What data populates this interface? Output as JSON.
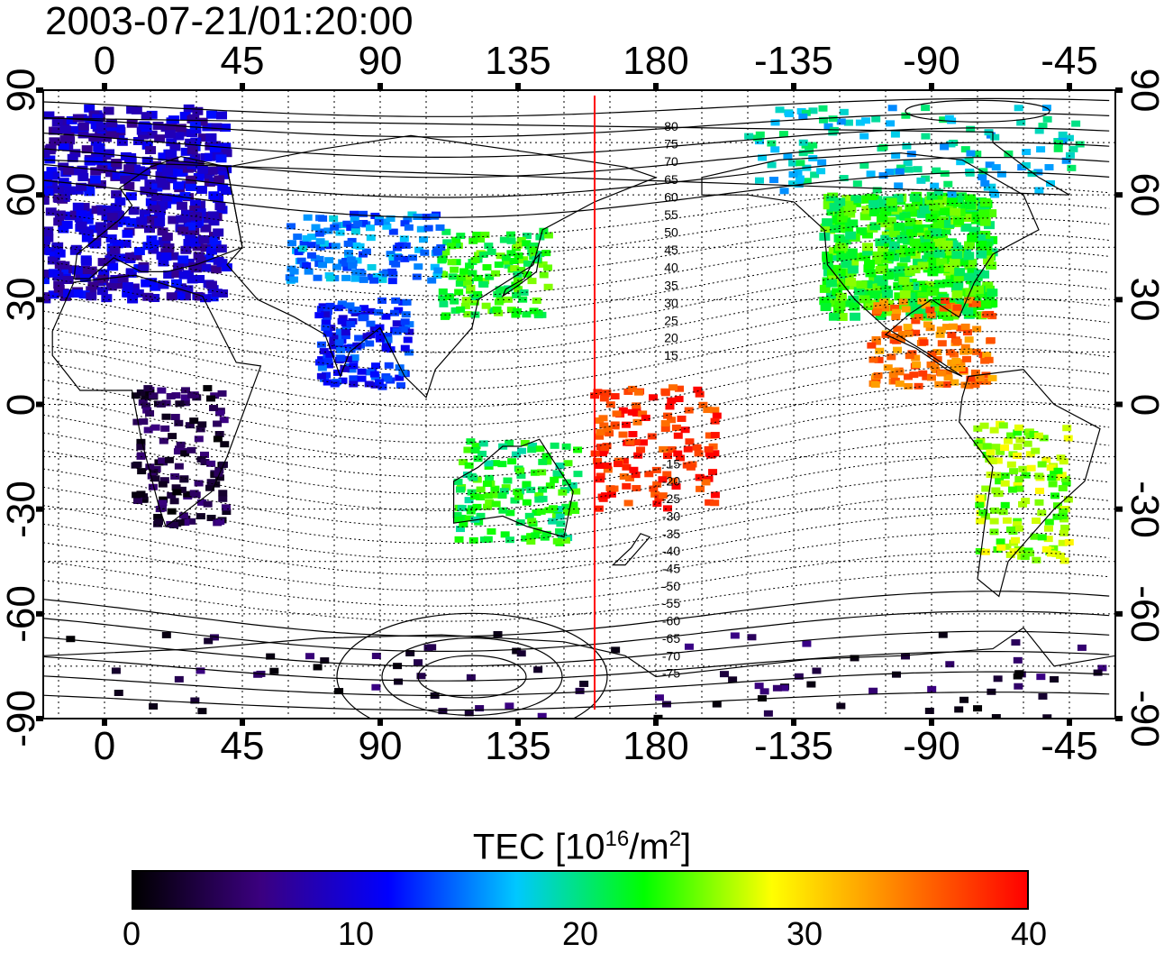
{
  "title": "2003-07-21/01:20:00",
  "x_axis": {
    "top_ticks": [
      "0",
      "45",
      "90",
      "135",
      "180",
      "-135",
      "-90",
      "-45"
    ],
    "bottom_ticks": [
      "0",
      "45",
      "90",
      "135",
      "180",
      "-135",
      "-90",
      "-45"
    ],
    "range_deg": [
      -20,
      330
    ]
  },
  "y_axis": {
    "left_ticks": [
      "90",
      "60",
      "30",
      "0",
      "-30",
      "-60",
      "-90"
    ],
    "right_ticks": [
      "90",
      "60",
      "30",
      "0",
      "-30",
      "-60",
      "-90"
    ],
    "range_deg": [
      -90,
      90
    ]
  },
  "contour_labels_north": [
    "80",
    "75",
    "70",
    "65",
    "60",
    "55",
    "50",
    "45",
    "40",
    "35",
    "30",
    "25",
    "20",
    "15"
  ],
  "contour_labels_south": [
    "-15",
    "-20",
    "-25",
    "-30",
    "-35",
    "-40",
    "-45",
    "-50",
    "-55",
    "-60",
    "-65",
    "-70",
    "-75"
  ],
  "marker_line_lon": 160,
  "colorbar": {
    "title_prefix": "TEC  [10",
    "title_exp1": "16",
    "title_mid": "/m",
    "title_exp2": "2",
    "title_suffix": "]",
    "ticks": [
      "0",
      "10",
      "20",
      "30",
      "40"
    ],
    "range": [
      0,
      40
    ],
    "colors": [
      "#000000",
      "#3b0080",
      "#0000ff",
      "#00c8ff",
      "#00ff00",
      "#ffff00",
      "#ff8000",
      "#ff0000"
    ]
  },
  "colors": {
    "marker_line": "#ff0000",
    "grid": "#000000",
    "coast": "#000000"
  },
  "tec_regions": [
    {
      "name": "europe",
      "lon": [
        -20,
        40
      ],
      "lat": [
        30,
        85
      ],
      "value": 9
    },
    {
      "name": "north-america",
      "lon": [
        -125,
        -70
      ],
      "lat": [
        25,
        60
      ],
      "value": 23
    },
    {
      "name": "canada-arctic",
      "lon": [
        -150,
        -40
      ],
      "lat": [
        60,
        85
      ],
      "value": 18
    },
    {
      "name": "central-america",
      "lon": [
        -110,
        -70
      ],
      "lat": [
        5,
        30
      ],
      "value": 35
    },
    {
      "name": "japan-china",
      "lon": [
        110,
        145
      ],
      "lat": [
        25,
        50
      ],
      "value": 23
    },
    {
      "name": "south-america",
      "lon": [
        -75,
        -45
      ],
      "lat": [
        -45,
        -5
      ],
      "value": 26
    },
    {
      "name": "australia",
      "lon": [
        115,
        155
      ],
      "lat": [
        -40,
        -10
      ],
      "value": 22
    },
    {
      "name": "pacific",
      "lon": [
        160,
        200
      ],
      "lat": [
        -30,
        5
      ],
      "value": 38
    },
    {
      "name": "africa",
      "lon": [
        10,
        40
      ],
      "lat": [
        -35,
        5
      ],
      "value": 3
    },
    {
      "name": "antarctica",
      "lon": [
        -20,
        330
      ],
      "lat": [
        -90,
        -65
      ],
      "value": 3
    },
    {
      "name": "india",
      "lon": [
        70,
        100
      ],
      "lat": [
        5,
        30
      ],
      "value": 12
    },
    {
      "name": "asia",
      "lon": [
        60,
        110
      ],
      "lat": [
        35,
        55
      ],
      "value": 15
    }
  ]
}
